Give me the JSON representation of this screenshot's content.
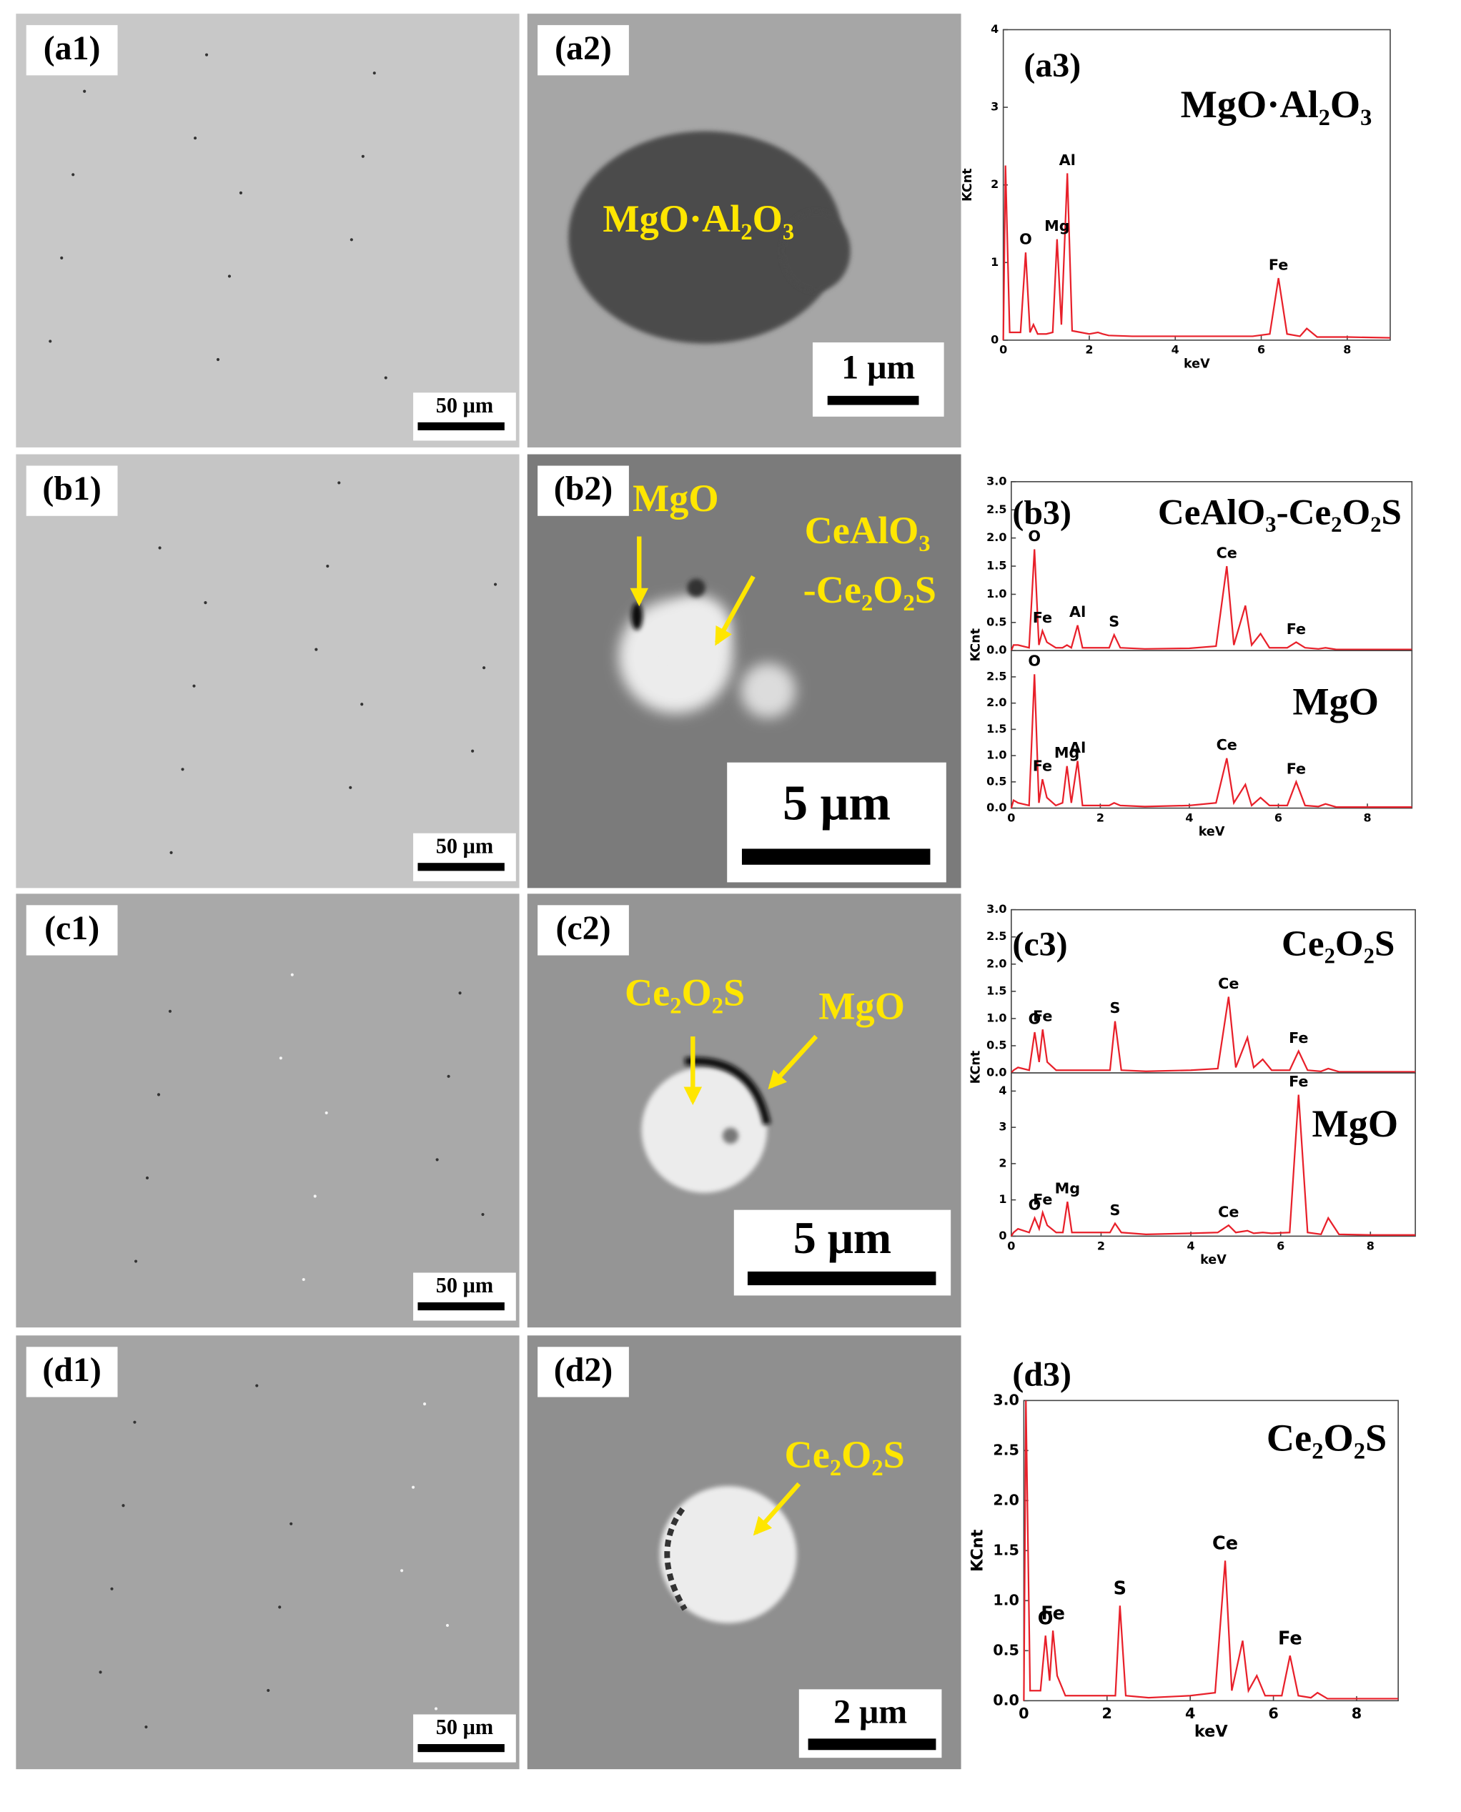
{
  "panels": [
    {
      "label": "(a1)",
      "scale_bar": "50 μm",
      "annotations": []
    },
    {
      "label": "(a2)",
      "scale_bar": "1 μm",
      "annotations": [
        "MgO·Al₂O₃"
      ]
    },
    {
      "label": "(b1)",
      "scale_bar": "50 μm",
      "annotations": []
    },
    {
      "label": "(b2)",
      "scale_bar": "5 μm",
      "annotations": [
        "MgO",
        "CeAlO₃",
        "-Ce₂O₂S"
      ]
    },
    {
      "label": "(c1)",
      "scale_bar": "50 μm",
      "annotations": []
    },
    {
      "label": "(c2)",
      "scale_bar": "5 μm",
      "annotations": [
        "Ce₂O₂S",
        "MgO"
      ]
    },
    {
      "label": "(d1)",
      "scale_bar": "50 μm",
      "annotations": []
    },
    {
      "label": "(d2)",
      "scale_bar": "2 μm",
      "annotations": [
        "Ce₂O₂S"
      ]
    }
  ],
  "chart_data": [
    {
      "type": "line",
      "panel_label": "(a3)",
      "title": "MgO·Al₂O₃",
      "ylabel": "KCnt",
      "xlabel": "keV",
      "color": "#e8202a",
      "xlim": [
        0,
        9
      ],
      "xticks": [
        0,
        2,
        4,
        6,
        8
      ],
      "ylim": [
        0,
        4
      ],
      "yticks": [
        0,
        1,
        2,
        3,
        4
      ],
      "x": [
        0,
        0.05,
        0.15,
        0.4,
        0.52,
        0.62,
        0.7,
        0.8,
        1.0,
        1.15,
        1.25,
        1.35,
        1.49,
        1.6,
        2.0,
        2.2,
        2.31,
        2.45,
        3.0,
        4.0,
        4.6,
        4.84,
        5.0,
        5.26,
        5.4,
        5.6,
        5.8,
        6.2,
        6.4,
        6.6,
        6.9,
        7.06,
        7.3,
        8.0,
        9.0
      ],
      "values": [
        0,
        2.25,
        0.1,
        0.1,
        1.13,
        0.1,
        0.2,
        0.08,
        0.08,
        0.1,
        1.3,
        0.2,
        2.15,
        0.12,
        0.08,
        0.1,
        0.08,
        0.06,
        0.05,
        0.05,
        0.05,
        0.05,
        0.05,
        0.05,
        0.05,
        0.05,
        0.05,
        0.08,
        0.8,
        0.08,
        0.05,
        0.15,
        0.04,
        0.04,
        0.03
      ],
      "annotations": [
        {
          "text": "O",
          "x": 0.52
        },
        {
          "text": "Mg",
          "x": 1.25
        },
        {
          "text": "Al",
          "x": 1.49
        },
        {
          "text": "Fe",
          "x": 6.4
        }
      ]
    },
    {
      "type": "line",
      "panel_label": "(b3)",
      "title": "CeAlO₃-Ce₂O₂S",
      "ylabel": "KCnt",
      "color": "#e8202a",
      "xlim": [
        0,
        9
      ],
      "ylim": [
        0,
        3
      ],
      "yticks": [
        {
          "value": 0,
          "label": "0.0"
        },
        0.5,
        {
          "value": 1,
          "label": "1.0"
        },
        1.5,
        {
          "value": 2,
          "label": "2.0"
        },
        2.5,
        {
          "value": 3,
          "label": "3.0"
        }
      ],
      "x": [
        0,
        0.05,
        0.15,
        0.4,
        0.52,
        0.62,
        0.7,
        0.8,
        1.0,
        1.15,
        1.25,
        1.35,
        1.49,
        1.6,
        2.0,
        2.2,
        2.31,
        2.45,
        3.0,
        4.0,
        4.6,
        4.84,
        5.0,
        5.26,
        5.4,
        5.6,
        5.8,
        6.2,
        6.4,
        6.6,
        6.9,
        7.06,
        7.3,
        8.0,
        9.0
      ],
      "values": [
        0,
        0.1,
        0.1,
        0.05,
        1.8,
        0.1,
        0.35,
        0.15,
        0.05,
        0.05,
        0.1,
        0.05,
        0.45,
        0.05,
        0.05,
        0.05,
        0.28,
        0.05,
        0.03,
        0.04,
        0.08,
        1.5,
        0.1,
        0.8,
        0.1,
        0.3,
        0.05,
        0.05,
        0.15,
        0.05,
        0.03,
        0.05,
        0.02,
        0.02,
        0.02
      ],
      "annotations": [
        {
          "text": "O",
          "x": 0.52
        },
        {
          "text": "Fe",
          "x": 0.7
        },
        {
          "text": "Al",
          "x": 1.49
        },
        {
          "text": "S",
          "x": 2.31
        },
        {
          "text": "Ce",
          "x": 4.84
        },
        {
          "text": "Fe",
          "x": 6.4
        }
      ]
    },
    {
      "type": "line",
      "title": "MgO",
      "xlabel": "keV",
      "color": "#e8202a",
      "xlim": [
        0,
        9
      ],
      "xticks": [
        0,
        2,
        4,
        6,
        8
      ],
      "ylim": [
        0,
        3
      ],
      "yticks": [
        {
          "value": 0,
          "label": "0.0"
        },
        0.5,
        {
          "value": 1,
          "label": "1.0"
        },
        1.5,
        {
          "value": 2,
          "label": "2.0"
        },
        2.5
      ],
      "x": [
        0,
        0.05,
        0.15,
        0.4,
        0.52,
        0.62,
        0.7,
        0.8,
        1.0,
        1.15,
        1.25,
        1.35,
        1.49,
        1.6,
        2.0,
        2.2,
        2.31,
        2.45,
        3.0,
        4.0,
        4.6,
        4.84,
        5.0,
        5.26,
        5.4,
        5.6,
        5.8,
        6.2,
        6.4,
        6.6,
        6.9,
        7.06,
        7.3,
        8.0,
        9.0
      ],
      "values": [
        0,
        0.15,
        0.1,
        0.05,
        2.55,
        0.1,
        0.55,
        0.2,
        0.05,
        0.1,
        0.8,
        0.1,
        0.9,
        0.05,
        0.05,
        0.05,
        0.1,
        0.05,
        0.03,
        0.05,
        0.1,
        0.95,
        0.1,
        0.45,
        0.05,
        0.2,
        0.05,
        0.05,
        0.5,
        0.05,
        0.03,
        0.08,
        0.02,
        0.02,
        0.02
      ],
      "annotations": [
        {
          "text": "O",
          "x": 0.52
        },
        {
          "text": "Fe",
          "x": 0.7
        },
        {
          "text": "Mg",
          "x": 1.25
        },
        {
          "text": "Al",
          "x": 1.49
        },
        {
          "text": "Ce",
          "x": 4.84
        },
        {
          "text": "Fe",
          "x": 6.4
        }
      ]
    },
    {
      "type": "line",
      "panel_label": "(c3)",
      "title": "Ce₂O₂S",
      "ylabel": "KCnt",
      "color": "#e8202a",
      "xlim": [
        0,
        9
      ],
      "ylim": [
        0,
        3
      ],
      "yticks": [
        {
          "value": 0,
          "label": "0.0"
        },
        0.5,
        {
          "value": 1,
          "label": "1.0"
        },
        1.5,
        {
          "value": 2,
          "label": "2.0"
        },
        2.5,
        {
          "value": 3,
          "label": "3.0"
        }
      ],
      "x": [
        0,
        0.05,
        0.15,
        0.4,
        0.52,
        0.62,
        0.7,
        0.8,
        1.0,
        1.15,
        1.25,
        1.35,
        1.49,
        1.6,
        2.0,
        2.2,
        2.31,
        2.45,
        3.0,
        4.0,
        4.6,
        4.84,
        5.0,
        5.26,
        5.4,
        5.6,
        5.8,
        6.2,
        6.4,
        6.6,
        6.9,
        7.06,
        7.3,
        8.0,
        9.0
      ],
      "values": [
        0,
        0.05,
        0.1,
        0.05,
        0.75,
        0.2,
        0.8,
        0.2,
        0.05,
        0.05,
        0.05,
        0.05,
        0.05,
        0.05,
        0.05,
        0.05,
        0.95,
        0.05,
        0.03,
        0.05,
        0.08,
        1.4,
        0.1,
        0.65,
        0.1,
        0.25,
        0.05,
        0.05,
        0.4,
        0.05,
        0.03,
        0.08,
        0.02,
        0.02,
        0.02
      ],
      "annotations": [
        {
          "text": "O",
          "x": 0.52
        },
        {
          "text": "Fe",
          "x": 0.7
        },
        {
          "text": "S",
          "x": 2.31
        },
        {
          "text": "Ce",
          "x": 4.84
        },
        {
          "text": "Fe",
          "x": 6.4
        }
      ]
    },
    {
      "type": "line",
      "title": "MgO",
      "xlabel": "keV",
      "color": "#e8202a",
      "xlim": [
        0,
        9
      ],
      "xticks": [
        0,
        2,
        4,
        6,
        8
      ],
      "ylim": [
        0,
        4.5
      ],
      "yticks": [
        0,
        1,
        2,
        3,
        4
      ],
      "x": [
        0,
        0.05,
        0.15,
        0.4,
        0.52,
        0.62,
        0.7,
        0.8,
        1.0,
        1.15,
        1.25,
        1.35,
        1.49,
        1.6,
        2.0,
        2.2,
        2.31,
        2.45,
        3.0,
        4.0,
        4.6,
        4.84,
        5.0,
        5.26,
        5.4,
        5.6,
        5.8,
        6.2,
        6.4,
        6.6,
        6.9,
        7.06,
        7.3,
        8.0,
        9.0
      ],
      "values": [
        0,
        0.1,
        0.2,
        0.1,
        0.5,
        0.2,
        0.65,
        0.3,
        0.1,
        0.1,
        0.95,
        0.1,
        0.1,
        0.1,
        0.1,
        0.1,
        0.35,
        0.1,
        0.05,
        0.08,
        0.1,
        0.3,
        0.1,
        0.15,
        0.08,
        0.1,
        0.08,
        0.1,
        3.9,
        0.1,
        0.05,
        0.5,
        0.05,
        0.03,
        0.03
      ],
      "annotations": [
        {
          "text": "O",
          "x": 0.52
        },
        {
          "text": "Fe",
          "x": 0.7
        },
        {
          "text": "Mg",
          "x": 1.25
        },
        {
          "text": "S",
          "x": 2.31
        },
        {
          "text": "Ce",
          "x": 4.84
        },
        {
          "text": "Fe",
          "x": 6.4
        }
      ]
    },
    {
      "type": "line",
      "panel_label": "(d3)",
      "title": "Ce₂O₂S",
      "ylabel": "KCnt",
      "xlabel": "keV",
      "color": "#e8202a",
      "xlim": [
        0,
        9
      ],
      "xticks": [
        0,
        2,
        4,
        6,
        8
      ],
      "ylim": [
        0,
        3
      ],
      "yticks": [
        {
          "value": 0,
          "label": "0.0"
        },
        0.5,
        {
          "value": 1,
          "label": "1.0"
        },
        1.5,
        {
          "value": 2,
          "label": "2.0"
        },
        2.5,
        {
          "value": 3,
          "label": "3.0"
        }
      ],
      "x": [
        0,
        0.05,
        0.15,
        0.4,
        0.52,
        0.62,
        0.7,
        0.8,
        1.0,
        1.15,
        1.25,
        1.35,
        1.49,
        1.6,
        2.0,
        2.2,
        2.31,
        2.45,
        3.0,
        4.0,
        4.6,
        4.84,
        5.0,
        5.26,
        5.4,
        5.6,
        5.8,
        6.2,
        6.4,
        6.6,
        6.9,
        7.06,
        7.3,
        8.0,
        9.0
      ],
      "values": [
        0,
        3.0,
        0.1,
        0.1,
        0.65,
        0.2,
        0.7,
        0.25,
        0.05,
        0.05,
        0.05,
        0.05,
        0.05,
        0.05,
        0.05,
        0.05,
        0.95,
        0.05,
        0.03,
        0.05,
        0.08,
        1.4,
        0.1,
        0.6,
        0.1,
        0.25,
        0.05,
        0.05,
        0.45,
        0.05,
        0.03,
        0.08,
        0.02,
        0.02,
        0.02
      ],
      "annotations": [
        {
          "text": "O",
          "x": 0.52
        },
        {
          "text": "Fe",
          "x": 0.7
        },
        {
          "text": "S",
          "x": 2.31
        },
        {
          "text": "Ce",
          "x": 4.84
        },
        {
          "text": "Fe",
          "x": 6.4
        }
      ]
    }
  ]
}
